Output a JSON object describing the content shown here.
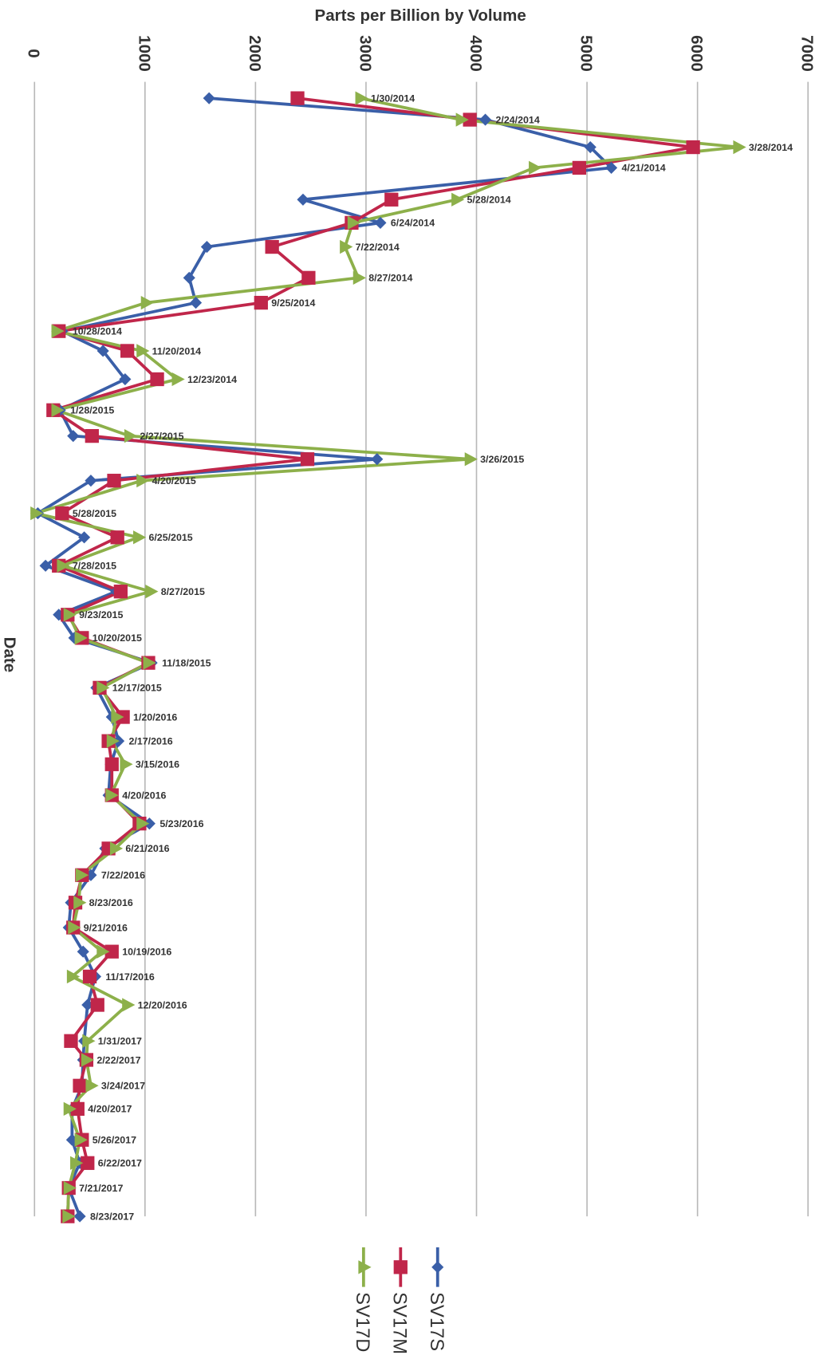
{
  "chart_data": {
    "type": "line",
    "title": "Parts per Billion by Volume",
    "y_label": "Date",
    "orientation": "horizontal",
    "categories": [
      "1/30/2014",
      "2/24/2014",
      "3/28/2014",
      "4/21/2014",
      "5/28/2014",
      "6/24/2014",
      "7/22/2014",
      "8/27/2014",
      "9/25/2014",
      "10/28/2014",
      "11/20/2014",
      "12/23/2014",
      "1/28/2015",
      "2/27/2015",
      "3/26/2015",
      "4/20/2015",
      "5/28/2015",
      "6/25/2015",
      "7/28/2015",
      "8/27/2015",
      "9/23/2015",
      "10/20/2015",
      "11/18/2015",
      "12/17/2015",
      "1/20/2016",
      "2/17/2016",
      "3/15/2016",
      "4/20/2016",
      "5/23/2016",
      "6/21/2016",
      "7/22/2016",
      "8/23/2016",
      "9/21/2016",
      "10/19/2016",
      "11/17/2016",
      "12/20/2016",
      "1/31/2017",
      "2/22/2017",
      "3/24/2017",
      "4/20/2017",
      "5/26/2017",
      "6/22/2017",
      "7/21/2017",
      "8/23/2017"
    ],
    "series": [
      {
        "name": "SV17S",
        "color": "#3a5fa8",
        "marker": "diamond",
        "values": [
          1580,
          4080,
          5030,
          5220,
          2430,
          3130,
          1560,
          1400,
          1460,
          250,
          620,
          820,
          230,
          350,
          3100,
          510,
          30,
          450,
          100,
          740,
          220,
          360,
          1060,
          560,
          700,
          760,
          690,
          670,
          1040,
          640,
          510,
          330,
          310,
          440,
          550,
          480,
          450,
          440,
          430,
          340,
          340,
          410,
          310,
          410
        ]
      },
      {
        "name": "SV17M",
        "color": "#c0264a",
        "marker": "square",
        "values": [
          2380,
          3940,
          5960,
          4930,
          3230,
          2870,
          2150,
          2480,
          2050,
          220,
          840,
          1110,
          170,
          520,
          2470,
          720,
          250,
          750,
          220,
          780,
          300,
          430,
          1030,
          590,
          800,
          670,
          700,
          700,
          950,
          670,
          430,
          370,
          350,
          700,
          500,
          570,
          330,
          470,
          410,
          390,
          430,
          480,
          310,
          300
        ]
      },
      {
        "name": "SV17D",
        "color": "#8db04a",
        "marker": "triangle",
        "values": [
          2950,
          3860,
          6370,
          4520,
          3820,
          2880,
          2810,
          2930,
          1010,
          200,
          970,
          1290,
          200,
          860,
          3940,
          970,
          10,
          940,
          250,
          1050,
          310,
          410,
          1030,
          610,
          740,
          700,
          820,
          690,
          970,
          730,
          420,
          400,
          350,
          610,
          340,
          840,
          480,
          470,
          510,
          310,
          410,
          370,
          310,
          300
        ]
      }
    ],
    "xlim": [
      0,
      7000
    ],
    "xticks": [
      0,
      1000,
      2000,
      3000,
      4000,
      5000,
      6000,
      7000
    ],
    "grid": true
  }
}
